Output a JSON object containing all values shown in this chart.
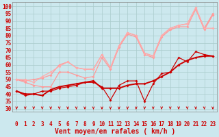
{
  "xlabel": "Vent moyen/en rafales ( km/h )",
  "background_color": "#cce8ee",
  "grid_color": "#aacccc",
  "x_values": [
    0,
    1,
    2,
    3,
    4,
    5,
    6,
    7,
    8,
    9,
    10,
    11,
    12,
    13,
    14,
    15,
    16,
    17,
    18,
    19,
    20,
    21,
    22,
    23
  ],
  "ylim": [
    28,
    103
  ],
  "yticks": [
    30,
    35,
    40,
    45,
    50,
    55,
    60,
    65,
    70,
    75,
    80,
    85,
    90,
    95,
    100
  ],
  "series": [
    {
      "y": [
        42,
        39,
        40,
        42,
        42,
        44,
        45,
        46,
        48,
        48,
        45,
        36,
        46,
        49,
        49,
        35,
        47,
        54,
        55,
        65,
        62,
        69,
        67,
        66
      ],
      "color": "#cc0000",
      "alpha": 1.0,
      "linewidth": 0.9,
      "marker": "D",
      "markersize": 2.0
    },
    {
      "y": [
        42,
        40,
        40,
        39,
        43,
        45,
        46,
        47,
        48,
        49,
        44,
        44,
        44,
        46,
        47,
        47,
        49,
        52,
        55,
        60,
        63,
        65,
        66,
        66
      ],
      "color": "#cc0000",
      "alpha": 1.0,
      "linewidth": 1.4,
      "marker": "D",
      "markersize": 2.0
    },
    {
      "y": [
        50,
        48,
        46,
        45,
        45,
        55,
        55,
        53,
        51,
        52,
        65,
        57,
        72,
        81,
        79,
        67,
        65,
        79,
        84,
        86,
        86,
        98,
        84,
        94
      ],
      "color": "#ff9999",
      "alpha": 1.0,
      "linewidth": 0.9,
      "marker": "D",
      "markersize": 2.0
    },
    {
      "y": [
        50,
        49,
        50,
        51,
        53,
        60,
        62,
        58,
        57,
        57,
        67,
        58,
        73,
        82,
        80,
        68,
        66,
        80,
        85,
        87,
        88,
        99,
        85,
        95
      ],
      "color": "#ff9999",
      "alpha": 1.0,
      "linewidth": 0.9,
      "marker": "D",
      "markersize": 2.0
    },
    {
      "y": [
        50,
        50,
        48,
        52,
        55,
        59,
        62,
        58,
        57,
        57,
        67,
        58,
        73,
        82,
        80,
        68,
        66,
        80,
        85,
        87,
        88,
        99,
        85,
        85
      ],
      "color": "#ffaaaa",
      "alpha": 1.0,
      "linewidth": 0.9,
      "marker": "D",
      "markersize": 2.0
    }
  ],
  "arrow_color": "#cc0000",
  "tick_color": "#cc0000",
  "label_color": "#cc0000",
  "tick_fontsize": 5.5,
  "xlabel_fontsize": 7.0
}
